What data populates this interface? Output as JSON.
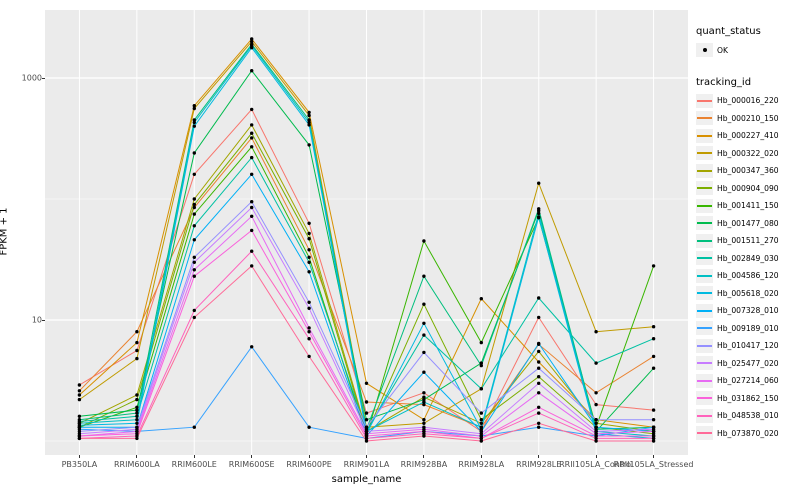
{
  "figure": {
    "bg": "#FFFFFF",
    "panel_bg": "#EBEBEB",
    "grid_color": "#FFFFFF",
    "tick_color": "#333333",
    "tick_label_color": "#4D4D4D",
    "point_color": "#000000"
  },
  "chart_data": {
    "type": "line",
    "xlabel": "sample_name",
    "ylabel": "FPKM + 1",
    "y_scale": "log10",
    "ylim": [
      0.9,
      3000
    ],
    "y_major_ticks": [
      {
        "value": 10,
        "label": "10"
      },
      {
        "value": 1000,
        "label": "1000"
      }
    ],
    "y_minor_ticks": [
      1,
      100
    ],
    "grid": true,
    "legend_position": "right",
    "categories": [
      "PB350LA",
      "RRIM600LA",
      "RRIM600LE",
      "RRIM600SE",
      "RRIM600PE",
      "RRIM901LA",
      "RRIM928BA",
      "RRIM928LA",
      "RRIM928LE",
      "RRII105LA_Control",
      "RRII105LA_Stressed"
    ],
    "series": [
      {
        "name": "Hb_000016_220",
        "color": "#F8766D",
        "values": [
          2.9,
          5.6,
          160,
          550,
          63,
          1.7,
          2.5,
          1.2,
          10.5,
          2.0,
          1.8
        ]
      },
      {
        "name": "Hb_000210_150",
        "color": "#EA8331",
        "values": [
          2.6,
          8.0,
          85,
          320,
          38,
          2.1,
          2.0,
          1.3,
          6.3,
          2.5,
          5.0
        ]
      },
      {
        "name": "Hb_000227_410",
        "color": "#D89000",
        "values": [
          2.4,
          6.5,
          590,
          2100,
          520,
          3.0,
          1.5,
          15.0,
          4.5,
          1.5,
          1.3
        ]
      },
      {
        "name": "Hb_000322_020",
        "color": "#C09B00",
        "values": [
          2.2,
          4.8,
          560,
          2000,
          490,
          1.3,
          1.4,
          2.7,
          135,
          8.0,
          8.8
        ]
      },
      {
        "name": "Hb_000347_360",
        "color": "#A3A500",
        "values": [
          1.4,
          2.4,
          100,
          410,
          52,
          1.2,
          2.3,
          1.4,
          5.5,
          1.4,
          1.2
        ]
      },
      {
        "name": "Hb_000904_090",
        "color": "#7CAE00",
        "values": [
          1.3,
          2.2,
          90,
          350,
          47,
          1.15,
          13.5,
          1.5,
          3.4,
          1.3,
          1.15
        ]
      },
      {
        "name": "Hb_001411_150",
        "color": "#39B600",
        "values": [
          1.3,
          1.9,
          75,
          270,
          33,
          1.1,
          45,
          6.5,
          70,
          1.3,
          28
        ]
      },
      {
        "name": "Hb_001477_080",
        "color": "#00BB4E",
        "values": [
          1.6,
          1.8,
          240,
          1150,
          280,
          1.5,
          2.2,
          4.4,
          80,
          1.2,
          4.0
        ]
      },
      {
        "name": "Hb_001511_270",
        "color": "#00BF7D",
        "values": [
          1.5,
          1.7,
          450,
          1900,
          450,
          1.25,
          23,
          4.2,
          83,
          1.25,
          1.3
        ]
      },
      {
        "name": "Hb_002849_030",
        "color": "#00C1A3",
        "values": [
          1.45,
          1.6,
          60,
          220,
          30,
          1.2,
          7.5,
          2.7,
          15.2,
          4.4,
          7.0
        ]
      },
      {
        "name": "Hb_004586_120",
        "color": "#00BFC4",
        "values": [
          1.4,
          1.5,
          430,
          1850,
          430,
          1.2,
          2.1,
          1.3,
          76,
          1.2,
          1.1
        ]
      },
      {
        "name": "Hb_005618_020",
        "color": "#00BAE0",
        "values": [
          1.35,
          1.4,
          400,
          1780,
          410,
          1.15,
          9.4,
          1.25,
          71,
          1.15,
          1.05
        ]
      },
      {
        "name": "Hb_007328_010",
        "color": "#00B0F6",
        "values": [
          1.3,
          1.3,
          46,
          160,
          25,
          1.1,
          3.7,
          1.2,
          6.4,
          1.3,
          1.2
        ]
      },
      {
        "name": "Hb_009189_010",
        "color": "#35A2FF",
        "values": [
          1.25,
          1.2,
          1.3,
          6.0,
          1.3,
          1.05,
          1.2,
          1.1,
          1.3,
          1.1,
          1.3
        ]
      },
      {
        "name": "Hb_010417_120",
        "color": "#9590FF",
        "values": [
          1.2,
          1.3,
          33,
          95,
          14,
          1.3,
          5.4,
          1.7,
          4.0,
          1.5,
          1.5
        ]
      },
      {
        "name": "Hb_025477_020",
        "color": "#C77CFF",
        "values": [
          1.15,
          1.25,
          30,
          85,
          12.5,
          1.2,
          1.3,
          1.15,
          3.0,
          1.2,
          1.25
        ]
      },
      {
        "name": "Hb_027214_060",
        "color": "#E76BF3",
        "values": [
          1.1,
          1.2,
          26,
          72,
          8.6,
          1.15,
          1.25,
          1.1,
          2.5,
          1.15,
          1.2
        ]
      },
      {
        "name": "Hb_031862_150",
        "color": "#FA62DB",
        "values": [
          1.1,
          1.15,
          23,
          55,
          8.0,
          1.1,
          1.2,
          1.05,
          1.9,
          1.1,
          1.1
        ]
      },
      {
        "name": "Hb_048538_010",
        "color": "#FF62BC",
        "values": [
          1.05,
          1.1,
          12,
          37,
          7.0,
          1.05,
          1.15,
          1.05,
          1.7,
          1.05,
          1.05
        ]
      },
      {
        "name": "Hb_073870_020",
        "color": "#FF6A98",
        "values": [
          1.05,
          1.05,
          10.5,
          28,
          5.0,
          1.0,
          1.1,
          1.0,
          1.4,
          1.0,
          1.0
        ]
      }
    ],
    "legend": {
      "quant_status": {
        "title": "quant_status",
        "items": [
          {
            "label": "OK",
            "glyph": "point"
          }
        ]
      },
      "tracking_id": {
        "title": "tracking_id"
      }
    }
  }
}
